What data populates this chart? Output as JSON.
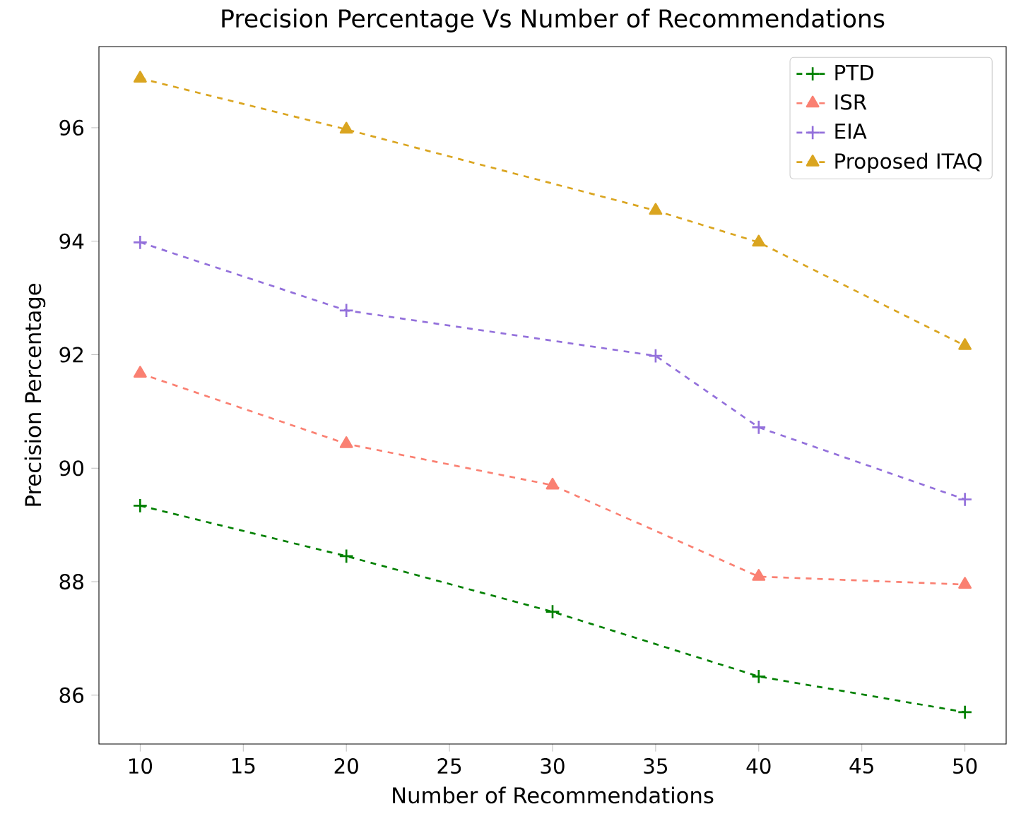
{
  "chart_data": {
    "type": "line",
    "title": "Precision Percentage  Vs Number of Recommendations",
    "xlabel": "Number of Recommendations",
    "ylabel": "Precision Percentage",
    "series": [
      {
        "name": "PTD",
        "color": "#008000",
        "marker": "cross",
        "x": [
          10,
          20,
          30,
          40,
          50
        ],
        "values": [
          89.34,
          88.45,
          87.47,
          86.33,
          85.7
        ]
      },
      {
        "name": "ISR",
        "color": "#fa8072",
        "marker": "triangle",
        "x": [
          10,
          20,
          30,
          40,
          50
        ],
        "values": [
          91.67,
          90.43,
          89.7,
          88.09,
          87.95
        ]
      },
      {
        "name": "EIA",
        "color": "#9370db",
        "marker": "cross",
        "x": [
          10,
          20,
          35,
          40,
          50
        ],
        "values": [
          93.98,
          92.78,
          91.98,
          90.72,
          89.45
        ]
      },
      {
        "name": "Proposed ITAQ",
        "color": "#daa520",
        "marker": "triangle",
        "x": [
          10,
          20,
          35,
          40,
          50
        ],
        "values": [
          96.87,
          95.97,
          94.54,
          93.98,
          92.16
        ]
      }
    ],
    "xlim": [
      8,
      52
    ],
    "ylim": [
      85.14,
      97.43
    ],
    "xticks": [
      10,
      15,
      20,
      25,
      30,
      35,
      40,
      45,
      50
    ],
    "yticks": [
      86,
      88,
      90,
      92,
      94,
      96
    ],
    "line_style": "dashed",
    "legend": "top right",
    "grid": false
  }
}
